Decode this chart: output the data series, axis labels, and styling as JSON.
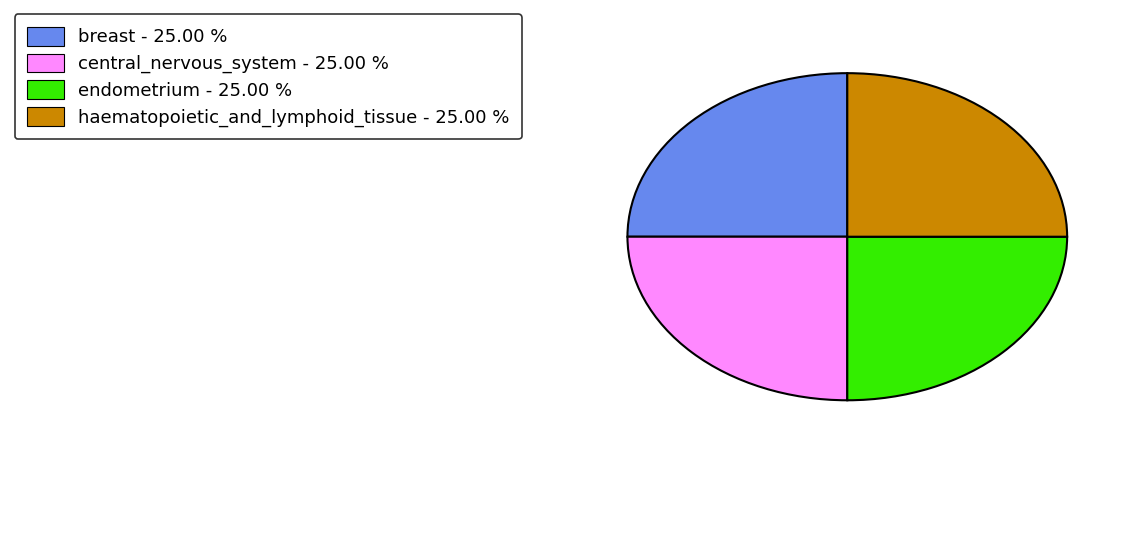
{
  "labels": [
    "breast - 25.00 %",
    "central_nervous_system - 25.00 %",
    "endometrium - 25.00 %",
    "haematopoietic_and_lymphoid_tissue - 25.00 %"
  ],
  "values": [
    25.0,
    25.0,
    25.0,
    25.0
  ],
  "colors": [
    "#6688ee",
    "#ff88ff",
    "#33ee00",
    "#cc8800"
  ],
  "legend_labels": [
    "breast - 25.00 %",
    "central_nervous_system - 25.00 %",
    "endometrium - 25.00 %",
    "haematopoietic_and_lymphoid_tissue - 25.00 %"
  ],
  "background_color": "#ffffff",
  "figsize": [
    11.45,
    5.38
  ],
  "dpi": 100,
  "startangle": 90,
  "legend_fontsize": 13,
  "edge_color": "#000000",
  "edge_linewidth": 1.5
}
